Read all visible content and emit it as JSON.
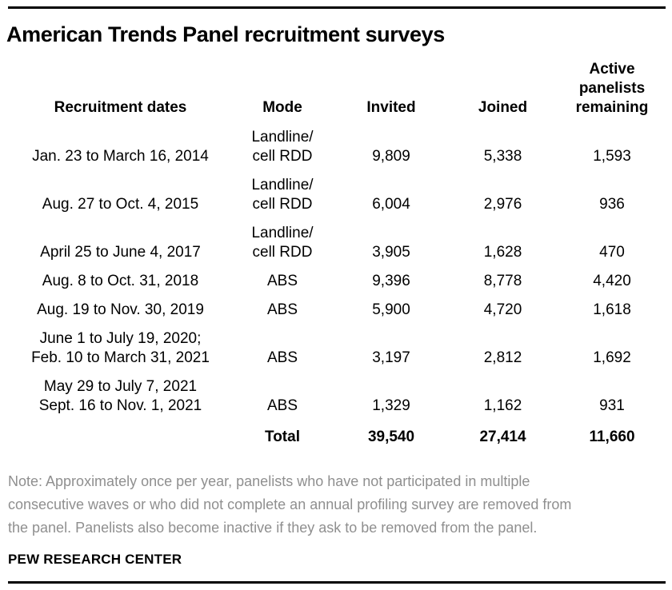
{
  "page": {
    "title": "American Trends Panel recruitment surveys",
    "note_lines": [
      "Note: Approximately once per year, panelists who have not participated in multiple",
      "consecutive waves or who did not complete an annual profiling survey are removed from",
      "the panel. Panelists also become inactive if they ask to be removed from the panel."
    ],
    "source_label": "PEW RESEARCH CENTER"
  },
  "colors": {
    "text": "#000000",
    "note_gray": "#8f8f8f",
    "rule": "#000000",
    "background": "#ffffff"
  },
  "chart_data": {
    "type": "table",
    "title": "American Trends Panel recruitment surveys",
    "columns": [
      "Recruitment dates",
      "Mode",
      "Invited",
      "Joined",
      "Active panelists remaining"
    ],
    "header_lines": [
      [
        "Recruitment dates"
      ],
      [
        "Mode"
      ],
      [
        "Invited"
      ],
      [
        "Joined"
      ],
      [
        "Active",
        "panelists",
        "remaining"
      ]
    ],
    "rows": [
      {
        "recruitment_dates": "Jan. 23 to March 16, 2014",
        "dates_lines": [
          "Jan. 23 to March 16, 2014"
        ],
        "mode": "Landline/cell RDD",
        "mode_lines": [
          "Landline/",
          "cell RDD"
        ],
        "invited": "9,809",
        "joined": "5,338",
        "active_panelists_remaining": "1,593"
      },
      {
        "recruitment_dates": "Aug. 27 to Oct. 4, 2015",
        "dates_lines": [
          "Aug. 27 to Oct. 4, 2015"
        ],
        "mode": "Landline/cell RDD",
        "mode_lines": [
          "Landline/",
          "cell RDD"
        ],
        "invited": "6,004",
        "joined": "2,976",
        "active_panelists_remaining": "936"
      },
      {
        "recruitment_dates": "April 25 to June 4, 2017",
        "dates_lines": [
          "April 25 to June 4, 2017"
        ],
        "mode": "Landline/cell RDD",
        "mode_lines": [
          "Landline/",
          "cell RDD"
        ],
        "invited": "3,905",
        "joined": "1,628",
        "active_panelists_remaining": "470"
      },
      {
        "recruitment_dates": "Aug. 8 to Oct. 31, 2018",
        "dates_lines": [
          "Aug. 8 to Oct. 31, 2018"
        ],
        "mode": "ABS",
        "mode_lines": [
          "ABS"
        ],
        "invited": "9,396",
        "joined": "8,778",
        "active_panelists_remaining": "4,420"
      },
      {
        "recruitment_dates": "Aug. 19 to Nov. 30, 2019",
        "dates_lines": [
          "Aug. 19 to Nov. 30, 2019"
        ],
        "mode": "ABS",
        "mode_lines": [
          "ABS"
        ],
        "invited": "5,900",
        "joined": "4,720",
        "active_panelists_remaining": "1,618"
      },
      {
        "recruitment_dates": "June 1 to July 19, 2020; Feb. 10 to March 31, 2021",
        "dates_lines": [
          "June 1 to July 19, 2020;",
          "Feb. 10 to March 31, 2021"
        ],
        "mode": "ABS",
        "mode_lines": [
          "ABS"
        ],
        "invited": "3,197",
        "joined": "2,812",
        "active_panelists_remaining": "1,692"
      },
      {
        "recruitment_dates": "May 29 to July 7, 2021 Sept. 16 to Nov. 1, 2021",
        "dates_lines": [
          "May 29 to July 7, 2021",
          "Sept. 16 to Nov. 1, 2021"
        ],
        "mode": "ABS",
        "mode_lines": [
          "ABS"
        ],
        "invited": "1,329",
        "joined": "1,162",
        "active_panelists_remaining": "931"
      }
    ],
    "total_row": {
      "label": "Total",
      "invited": "39,540",
      "joined": "27,414",
      "active_panelists_remaining": "11,660"
    }
  }
}
